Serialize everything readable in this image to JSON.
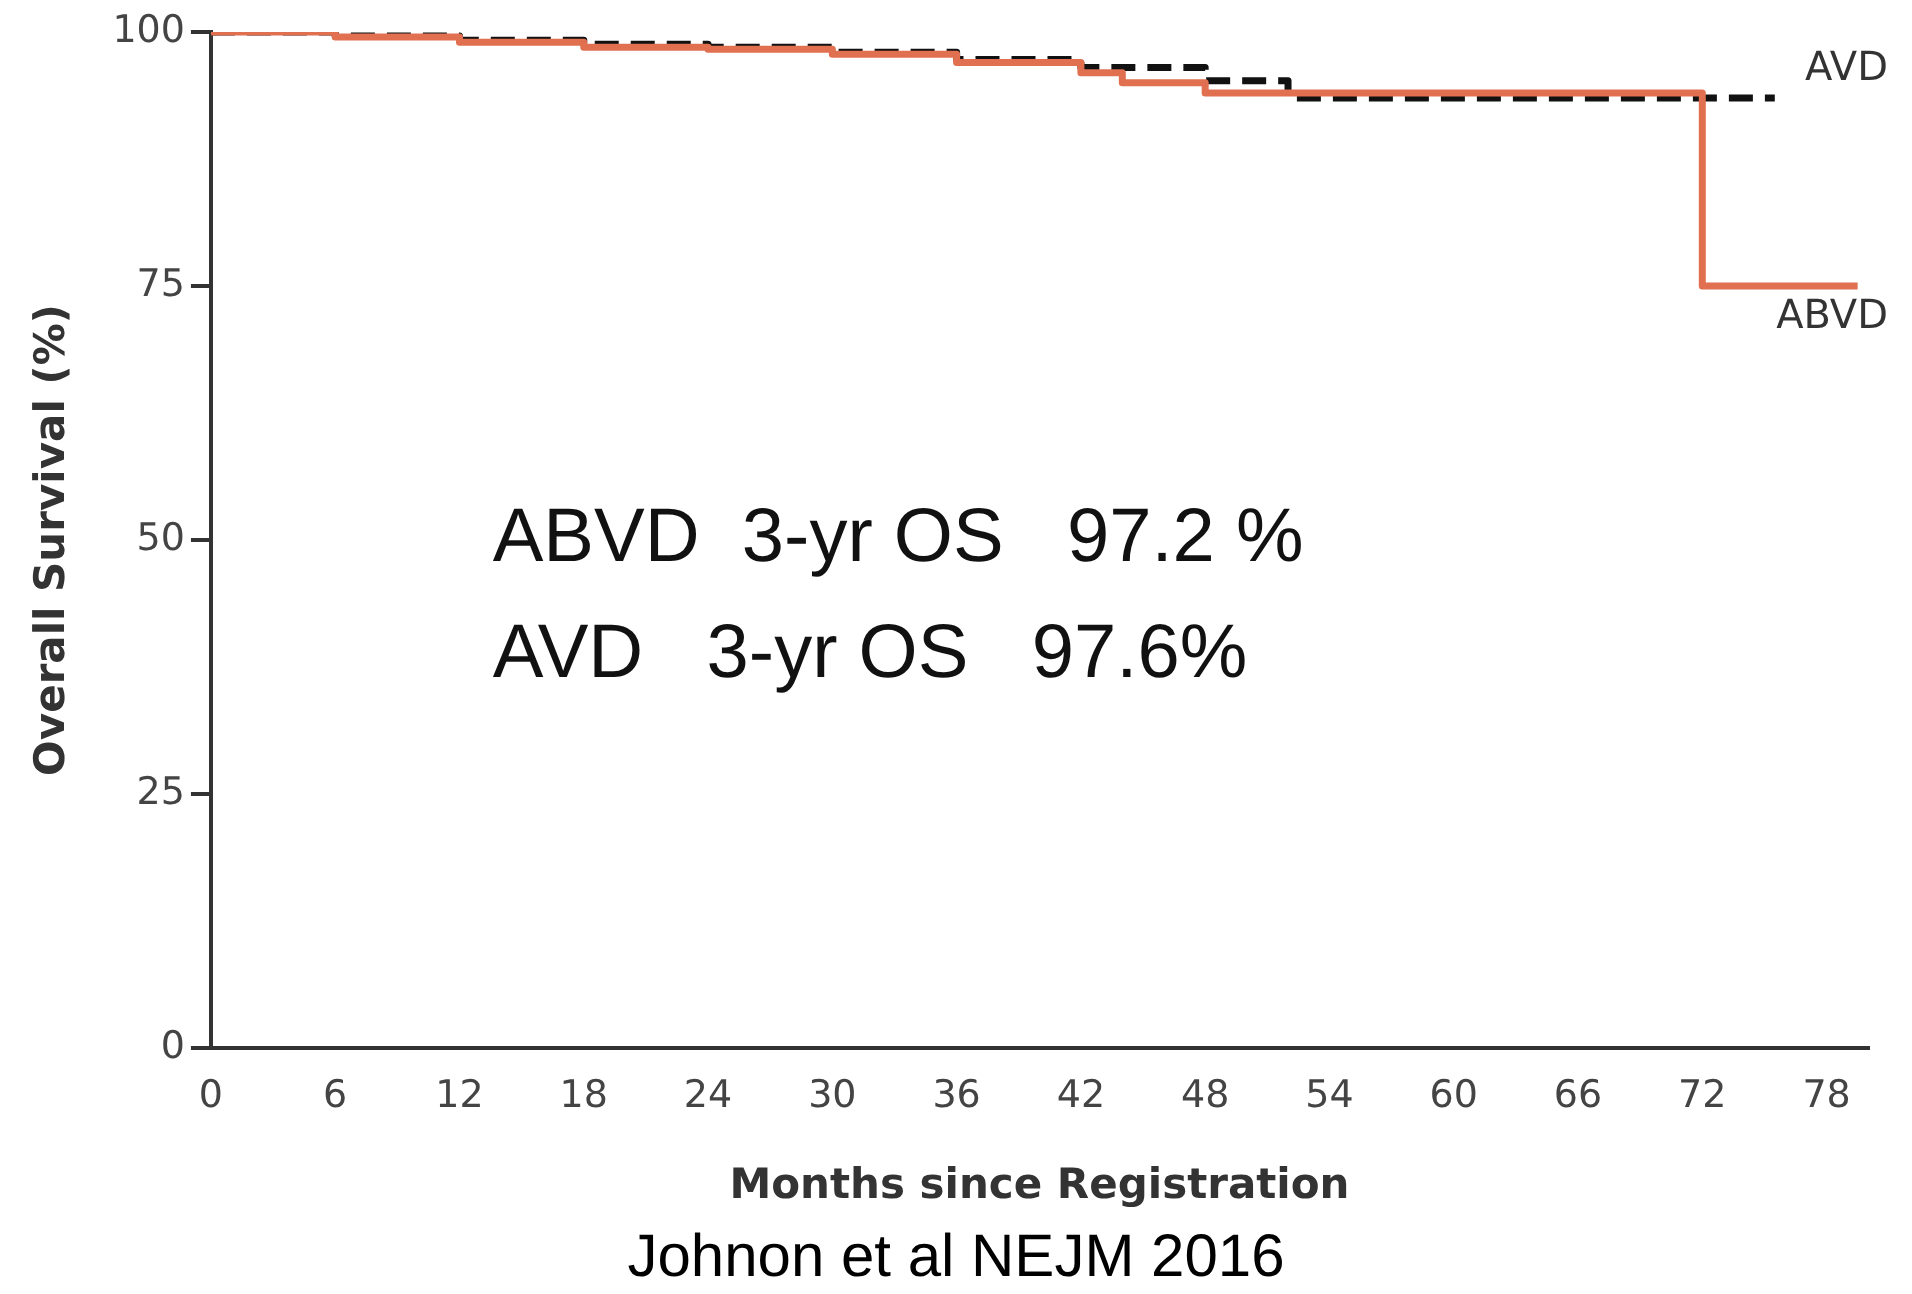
{
  "chart_data": {
    "type": "step",
    "xlabel": "Months since Registration",
    "ylabel": "Overall Survival (%)",
    "xlim": [
      0,
      80
    ],
    "xticks": [
      0,
      6,
      12,
      18,
      24,
      30,
      36,
      42,
      48,
      54,
      60,
      66,
      72,
      78
    ],
    "ylim": [
      0,
      100
    ],
    "yticks": [
      0,
      25,
      50,
      75,
      100
    ],
    "grid": false,
    "legend": false,
    "marker": "none",
    "series": [
      {
        "name": "ABVD",
        "color": "#e07050",
        "line_style": "solid",
        "x": [
          0,
          6,
          12,
          18,
          24,
          30,
          36,
          42,
          44,
          48,
          72,
          79.5
        ],
        "values": [
          100,
          99.5,
          99,
          98.5,
          98.3,
          97.8,
          97,
          96,
          95,
          94,
          75,
          75
        ]
      },
      {
        "name": "AVD",
        "color": "#111111",
        "line_style": "dashed",
        "x": [
          0,
          6,
          12,
          18,
          24,
          30,
          36,
          42,
          48,
          52,
          75.5
        ],
        "values": [
          100,
          99.6,
          99.2,
          98.8,
          98.5,
          98,
          97.3,
          96.5,
          95.2,
          93.5,
          93.5
        ]
      }
    ],
    "annotations": [
      "ABVD  3-yr OS   97.2 %",
      "AVD   3-yr OS   97.6%",
      "Johnon et al NEJM 2016"
    ]
  }
}
